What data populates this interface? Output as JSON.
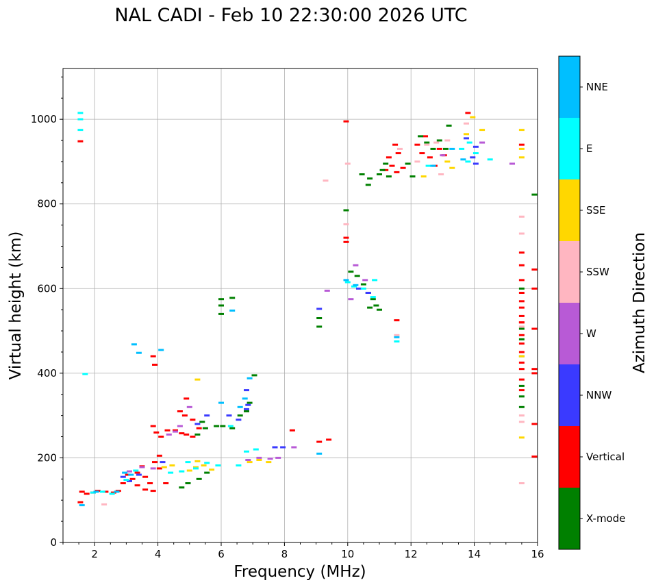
{
  "chart_data": {
    "type": "scatter",
    "title": "NAL CADI - Feb 10 22:30:00 2026 UTC",
    "xlabel": "Frequency (MHz)",
    "ylabel": "Virtual height (km)",
    "xlim": [
      1,
      16
    ],
    "ylim": [
      0,
      1120
    ],
    "xticks": [
      "2",
      "4",
      "6",
      "8",
      "10",
      "12",
      "14",
      "16"
    ],
    "yticks": [
      "0",
      "200",
      "400",
      "600",
      "800",
      "1000"
    ],
    "grid": true,
    "colorbar": {
      "label": "Azimuth Direction",
      "categories": [
        {
          "name": "X-mode",
          "color": "#008000"
        },
        {
          "name": "Vertical",
          "color": "#ff0000"
        },
        {
          "name": "NNW",
          "color": "#3a3aff"
        },
        {
          "name": "W",
          "color": "#b85ad6"
        },
        {
          "name": "SSW",
          "color": "#ffb6c1"
        },
        {
          "name": "SSE",
          "color": "#ffd700"
        },
        {
          "name": "E",
          "color": "#00ffff"
        },
        {
          "name": "NNE",
          "color": "#00bfff"
        }
      ]
    },
    "series": [
      {
        "name": "Vertical",
        "points": [
          [
            1.55,
            95
          ],
          [
            1.6,
            120
          ],
          [
            1.75,
            115
          ],
          [
            1.95,
            118
          ],
          [
            2.1,
            122
          ],
          [
            2.35,
            120
          ],
          [
            2.6,
            118
          ],
          [
            2.75,
            122
          ],
          [
            2.9,
            140
          ],
          [
            3.05,
            160
          ],
          [
            3.2,
            150
          ],
          [
            3.35,
            165
          ],
          [
            3.5,
            180
          ],
          [
            3.6,
            155
          ],
          [
            3.75,
            140
          ],
          [
            3.9,
            190
          ],
          [
            4.05,
            175
          ],
          [
            3.35,
            135
          ],
          [
            3.6,
            125
          ],
          [
            3.85,
            122
          ],
          [
            4.25,
            140
          ],
          [
            4.05,
            205
          ],
          [
            3.85,
            275
          ],
          [
            3.95,
            260
          ],
          [
            4.1,
            250
          ],
          [
            4.3,
            265
          ],
          [
            4.55,
            265
          ],
          [
            4.75,
            258
          ],
          [
            4.9,
            255
          ],
          [
            5.1,
            250
          ],
          [
            5.3,
            270
          ],
          [
            4.9,
            340
          ],
          [
            5.1,
            290
          ],
          [
            4.85,
            300
          ],
          [
            4.7,
            310
          ],
          [
            3.85,
            440
          ],
          [
            3.9,
            420
          ],
          [
            1.55,
            948
          ],
          [
            9.95,
            995
          ],
          [
            9.95,
            720
          ],
          [
            9.95,
            710
          ],
          [
            8.25,
            265
          ],
          [
            9.1,
            238
          ],
          [
            9.4,
            243
          ],
          [
            11.55,
            525
          ],
          [
            11.2,
            880
          ],
          [
            11.4,
            890
          ],
          [
            11.55,
            875
          ],
          [
            11.75,
            885
          ],
          [
            11.3,
            910
          ],
          [
            11.6,
            920
          ],
          [
            11.5,
            940
          ],
          [
            12.2,
            940
          ],
          [
            12.35,
            920
          ],
          [
            12.6,
            910
          ],
          [
            12.75,
            890
          ],
          [
            12.9,
            930
          ],
          [
            13.05,
            915
          ],
          [
            12.45,
            960
          ],
          [
            13.8,
            1015
          ],
          [
            15.5,
            685
          ],
          [
            15.5,
            655
          ],
          [
            15.5,
            620
          ],
          [
            15.5,
            590
          ],
          [
            15.5,
            570
          ],
          [
            15.5,
            555
          ],
          [
            15.5,
            535
          ],
          [
            15.5,
            520
          ],
          [
            15.5,
            490
          ],
          [
            15.5,
            470
          ],
          [
            15.5,
            450
          ],
          [
            15.5,
            425
          ],
          [
            15.5,
            410
          ],
          [
            15.5,
            385
          ],
          [
            15.5,
            360
          ],
          [
            15.5,
            520
          ],
          [
            15.5,
            940
          ],
          [
            15.9,
            645
          ],
          [
            15.9,
            600
          ],
          [
            15.9,
            505
          ],
          [
            15.9,
            410
          ],
          [
            15.9,
            400
          ],
          [
            15.9,
            280
          ],
          [
            15.9,
            203
          ]
        ]
      },
      {
        "name": "X-mode",
        "points": [
          [
            4.75,
            130
          ],
          [
            5.3,
            150
          ],
          [
            5.55,
            165
          ],
          [
            4.95,
            140
          ],
          [
            5.25,
            255
          ],
          [
            5.5,
            270
          ],
          [
            5.4,
            285
          ],
          [
            5.85,
            275
          ],
          [
            6.05,
            275
          ],
          [
            6.35,
            270
          ],
          [
            6.6,
            300
          ],
          [
            6.8,
            310
          ],
          [
            6.9,
            330
          ],
          [
            7.05,
            395
          ],
          [
            6.0,
            575
          ],
          [
            6.0,
            560
          ],
          [
            6.0,
            540
          ],
          [
            6.35,
            578
          ],
          [
            9.1,
            510
          ],
          [
            9.1,
            530
          ],
          [
            10.1,
            640
          ],
          [
            10.3,
            630
          ],
          [
            10.5,
            610
          ],
          [
            10.65,
            590
          ],
          [
            10.8,
            575
          ],
          [
            10.9,
            560
          ],
          [
            11.0,
            550
          ],
          [
            10.7,
            555
          ],
          [
            9.95,
            785
          ],
          [
            10.45,
            870
          ],
          [
            10.7,
            860
          ],
          [
            10.65,
            845
          ],
          [
            11.0,
            870
          ],
          [
            11.2,
            895
          ],
          [
            11.1,
            880
          ],
          [
            11.3,
            865
          ],
          [
            11.9,
            895
          ],
          [
            12.05,
            865
          ],
          [
            12.3,
            960
          ],
          [
            12.5,
            945
          ],
          [
            12.7,
            930
          ],
          [
            12.9,
            950
          ],
          [
            13.1,
            930
          ],
          [
            13.2,
            985
          ],
          [
            15.5,
            600
          ],
          [
            15.5,
            505
          ],
          [
            15.5,
            480
          ],
          [
            15.5,
            440
          ],
          [
            15.5,
            370
          ],
          [
            15.5,
            345
          ],
          [
            15.5,
            320
          ],
          [
            15.9,
            822
          ]
        ]
      },
      {
        "name": "NNW",
        "points": [
          [
            2.9,
            155
          ],
          [
            3.1,
            145
          ],
          [
            3.4,
            160
          ],
          [
            4.15,
            190
          ],
          [
            5.55,
            300
          ],
          [
            5.25,
            280
          ],
          [
            6.25,
            300
          ],
          [
            6.55,
            290
          ],
          [
            6.8,
            315
          ],
          [
            6.85,
            325
          ],
          [
            6.8,
            360
          ],
          [
            7.7,
            225
          ],
          [
            7.95,
            225
          ],
          [
            9.1,
            552
          ],
          [
            10.35,
            600
          ],
          [
            10.65,
            590
          ],
          [
            14.05,
            895
          ],
          [
            13.95,
            910
          ],
          [
            14.05,
            935
          ],
          [
            13.75,
            955
          ]
        ]
      },
      {
        "name": "W",
        "points": [
          [
            3.1,
            168
          ],
          [
            3.5,
            178
          ],
          [
            3.85,
            175
          ],
          [
            4.35,
            255
          ],
          [
            4.55,
            262
          ],
          [
            4.7,
            275
          ],
          [
            6.85,
            195
          ],
          [
            7.2,
            200
          ],
          [
            7.55,
            198
          ],
          [
            7.8,
            200
          ],
          [
            8.3,
            225
          ],
          [
            9.35,
            595
          ],
          [
            10.1,
            575
          ],
          [
            10.25,
            655
          ],
          [
            10.55,
            620
          ],
          [
            13.0,
            915
          ],
          [
            14.25,
            945
          ],
          [
            15.2,
            895
          ],
          [
            5.0,
            320
          ]
        ]
      },
      {
        "name": "SSW",
        "points": [
          [
            2.3,
            90
          ],
          [
            9.3,
            855
          ],
          [
            9.95,
            752
          ],
          [
            10.0,
            895
          ],
          [
            11.55,
            490
          ],
          [
            11.65,
            930
          ],
          [
            12.2,
            900
          ],
          [
            12.5,
            940
          ],
          [
            12.8,
            945
          ],
          [
            12.95,
            870
          ],
          [
            13.15,
            950
          ],
          [
            13.75,
            990
          ],
          [
            15.5,
            770
          ],
          [
            15.5,
            730
          ],
          [
            15.5,
            510
          ],
          [
            15.5,
            300
          ],
          [
            15.5,
            285
          ],
          [
            15.5,
            140
          ]
        ]
      },
      {
        "name": "SSE",
        "points": [
          [
            4.2,
            178
          ],
          [
            4.45,
            182
          ],
          [
            5.0,
            170
          ],
          [
            5.2,
            178
          ],
          [
            5.45,
            182
          ],
          [
            5.7,
            172
          ],
          [
            5.25,
            192
          ],
          [
            6.9,
            190
          ],
          [
            7.2,
            195
          ],
          [
            7.5,
            190
          ],
          [
            5.25,
            385
          ],
          [
            13.15,
            900
          ],
          [
            13.3,
            885
          ],
          [
            13.75,
            965
          ],
          [
            13.95,
            1005
          ],
          [
            14.25,
            975
          ],
          [
            12.4,
            865
          ],
          [
            15.5,
            975
          ],
          [
            15.5,
            930
          ],
          [
            15.5,
            910
          ],
          [
            15.5,
            440
          ],
          [
            15.5,
            248
          ]
        ]
      },
      {
        "name": "E",
        "points": [
          [
            1.55,
            1015
          ],
          [
            1.55,
            1000
          ],
          [
            1.55,
            975
          ],
          [
            1.7,
            398
          ],
          [
            1.95,
            118
          ],
          [
            2.25,
            120
          ],
          [
            2.55,
            115
          ],
          [
            3.0,
            148
          ],
          [
            3.3,
            170
          ],
          [
            4.4,
            165
          ],
          [
            4.75,
            168
          ],
          [
            4.95,
            190
          ],
          [
            5.2,
            175
          ],
          [
            5.55,
            188
          ],
          [
            5.9,
            182
          ],
          [
            6.55,
            182
          ],
          [
            6.3,
            275
          ],
          [
            6.8,
            215
          ],
          [
            7.1,
            220
          ],
          [
            10.0,
            615
          ],
          [
            10.2,
            605
          ],
          [
            10.5,
            600
          ],
          [
            10.85,
            620
          ],
          [
            10.8,
            580
          ],
          [
            11.55,
            475
          ],
          [
            12.55,
            890
          ],
          [
            13.8,
            900
          ],
          [
            14.05,
            920
          ],
          [
            13.6,
            930
          ],
          [
            13.85,
            945
          ],
          [
            14.5,
            905
          ]
        ]
      },
      {
        "name": "NNE",
        "points": [
          [
            1.6,
            88
          ],
          [
            2.05,
            120
          ],
          [
            2.7,
            120
          ],
          [
            2.95,
            165
          ],
          [
            3.15,
            160
          ],
          [
            3.25,
            468
          ],
          [
            3.4,
            448
          ],
          [
            4.1,
            455
          ],
          [
            6.0,
            330
          ],
          [
            6.35,
            548
          ],
          [
            6.6,
            320
          ],
          [
            6.75,
            340
          ],
          [
            6.9,
            388
          ],
          [
            9.1,
            210
          ],
          [
            9.95,
            620
          ],
          [
            10.25,
            608
          ],
          [
            11.55,
            485
          ],
          [
            12.7,
            890
          ],
          [
            13.3,
            930
          ],
          [
            13.65,
            905
          ]
        ]
      }
    ]
  }
}
